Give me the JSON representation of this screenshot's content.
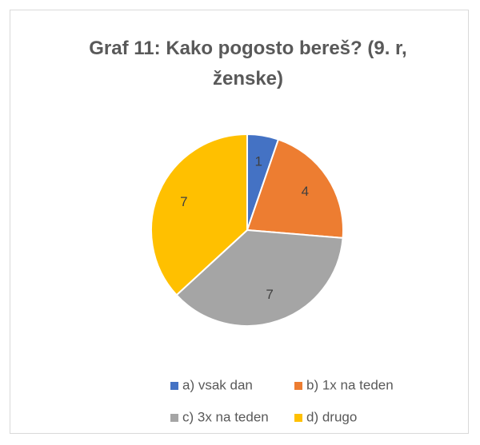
{
  "chart_data": {
    "type": "pie",
    "title": "Graf 11: Kako pogosto bereš? (9. r, ženske)",
    "categories": [
      "a) vsak dan",
      "b) 1x na teden",
      "c) 3x na teden",
      "d) drugo"
    ],
    "values": [
      1,
      4,
      7,
      7
    ],
    "colors": [
      "#4472c4",
      "#ed7d31",
      "#a5a5a5",
      "#ffc000"
    ],
    "legend": "bottom"
  }
}
